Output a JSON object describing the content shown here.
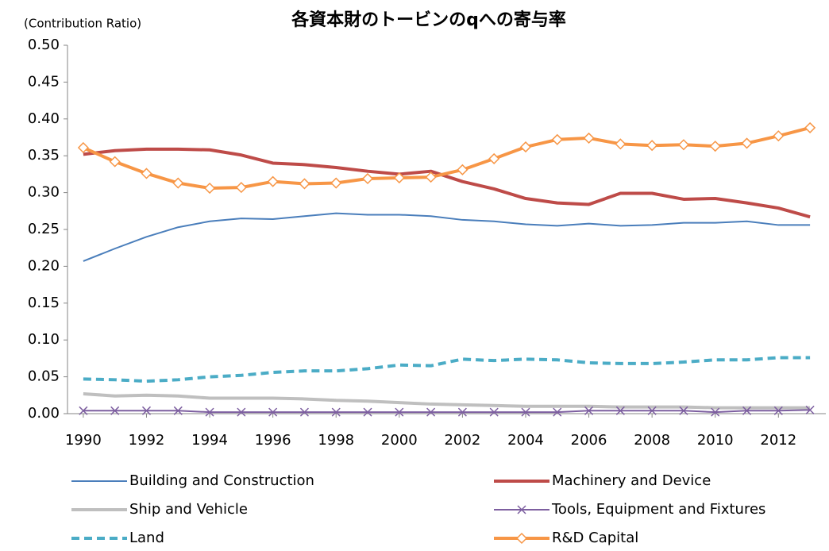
{
  "chart_data": {
    "type": "line",
    "title": "各資本財のトービンのqへの寄与率",
    "y_label": "(Contribution Ratio)",
    "x": [
      1990,
      1991,
      1992,
      1993,
      1994,
      1995,
      1996,
      1997,
      1998,
      1999,
      2000,
      2001,
      2002,
      2003,
      2004,
      2005,
      2006,
      2007,
      2008,
      2009,
      2010,
      2011,
      2012,
      2013
    ],
    "xlim": [
      1989.5,
      2013.5
    ],
    "xticks": [
      1990,
      1992,
      1994,
      1996,
      1998,
      2000,
      2002,
      2004,
      2006,
      2008,
      2010,
      2012
    ],
    "ylim": [
      0,
      0.5
    ],
    "yticks": [
      {
        "value": 0,
        "label": "0.00"
      },
      {
        "value": 0.05,
        "label": "0.05"
      },
      {
        "value": 0.1,
        "label": "0.10"
      },
      {
        "value": 0.15,
        "label": "0.15"
      },
      {
        "value": 0.2,
        "label": "0.20"
      },
      {
        "value": 0.25,
        "label": "0.25"
      },
      {
        "value": 0.3,
        "label": "0.30"
      },
      {
        "value": 0.35,
        "label": "0.35"
      },
      {
        "value": 0.4,
        "label": "0.40"
      },
      {
        "value": 0.45,
        "label": "0.45"
      },
      {
        "value": 0.5,
        "label": "0.50"
      }
    ],
    "grid": false,
    "legend": "bottom",
    "series": [
      {
        "name": "Building and Construction",
        "color": "#4a7ebb",
        "width": 2,
        "values": [
          0.207,
          0.224,
          0.24,
          0.253,
          0.261,
          0.265,
          0.264,
          0.268,
          0.272,
          0.27,
          0.27,
          0.268,
          0.263,
          0.261,
          0.257,
          0.255,
          0.258,
          0.255,
          0.256,
          0.259,
          0.259,
          0.261,
          0.256,
          0.256
        ]
      },
      {
        "name": "Machinery and Device",
        "color": "#be4b48",
        "width": 4,
        "values": [
          0.352,
          0.357,
          0.359,
          0.359,
          0.358,
          0.351,
          0.34,
          0.338,
          0.334,
          0.329,
          0.325,
          0.329,
          0.315,
          0.305,
          0.292,
          0.286,
          0.284,
          0.299,
          0.299,
          0.291,
          0.292,
          0.286,
          0.279,
          0.267
        ]
      },
      {
        "name": "Ship and Vehicle",
        "color": "#bfbfbf",
        "width": 4,
        "values": [
          0.027,
          0.024,
          0.025,
          0.024,
          0.021,
          0.021,
          0.021,
          0.02,
          0.018,
          0.017,
          0.015,
          0.013,
          0.012,
          0.011,
          0.01,
          0.01,
          0.01,
          0.009,
          0.009,
          0.009,
          0.008,
          0.008,
          0.008,
          0.008
        ]
      },
      {
        "name": "Tools, Equipment and Fixtures",
        "color": "#7d5fa0",
        "width": 2,
        "marker": "x",
        "values": [
          0.004,
          0.004,
          0.004,
          0.004,
          0.002,
          0.002,
          0.002,
          0.002,
          0.002,
          0.002,
          0.002,
          0.002,
          0.002,
          0.002,
          0.002,
          0.002,
          0.004,
          0.004,
          0.004,
          0.004,
          0.002,
          0.004,
          0.004,
          0.005
        ]
      },
      {
        "name": "Land",
        "color": "#4bacc6",
        "width": 4,
        "dash": true,
        "values": [
          0.047,
          0.046,
          0.044,
          0.046,
          0.05,
          0.052,
          0.056,
          0.058,
          0.058,
          0.061,
          0.066,
          0.065,
          0.074,
          0.072,
          0.074,
          0.073,
          0.069,
          0.068,
          0.068,
          0.07,
          0.073,
          0.073,
          0.076,
          0.076
        ]
      },
      {
        "name": "R&D Capital",
        "color": "#f79646",
        "width": 4,
        "marker": "diamond",
        "values": [
          0.361,
          0.342,
          0.326,
          0.313,
          0.306,
          0.307,
          0.315,
          0.312,
          0.313,
          0.319,
          0.32,
          0.321,
          0.331,
          0.346,
          0.362,
          0.372,
          0.374,
          0.366,
          0.364,
          0.365,
          0.363,
          0.367,
          0.377,
          0.388
        ]
      }
    ]
  }
}
